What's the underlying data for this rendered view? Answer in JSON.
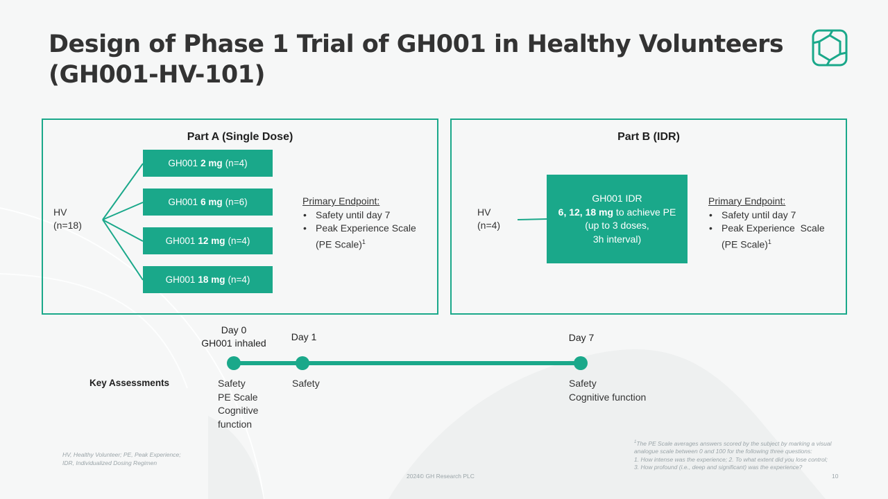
{
  "slide": {
    "title_line1": "Design of Phase 1 Trial of GH001 in Healthy Volunteers",
    "title_line2": "(GH001-HV-101)",
    "logo_icon": "hexagon-logo-icon",
    "accent_color": "#1aa88a"
  },
  "part_a": {
    "title": "Part A (Single Dose)",
    "hv_label": "HV",
    "hv_count": "(n=18)",
    "doses": [
      {
        "drug": "GH001",
        "dose": "2 mg",
        "n": "(n=4)"
      },
      {
        "drug": "GH001",
        "dose": "6 mg",
        "n": "(n=6)"
      },
      {
        "drug": "GH001",
        "dose": "12 mg",
        "n": "(n=4)"
      },
      {
        "drug": "GH001",
        "dose": "18 mg",
        "n": "(n=4)"
      }
    ],
    "endpoint_heading": "Primary Endpoint:",
    "endpoint_item1": "Safety until day 7",
    "endpoint_item2_line1": "Peak Experience Scale",
    "endpoint_item2_line2": "(PE Scale)",
    "endpoint_sup": "1"
  },
  "part_b": {
    "title": "Part B (IDR)",
    "hv_label": "HV",
    "hv_count": "(n=4)",
    "idr_line1": "GH001 IDR",
    "idr_doses_bold": "6, 12, 18 mg",
    "idr_line2_rest": " to achieve PE",
    "idr_line3": "(up to 3 doses,",
    "idr_line4": "3h interval)",
    "endpoint_heading": "Primary Endpoint:",
    "endpoint_item1": "Safety until day 7",
    "endpoint_item2_line1": "Peak Experience  Scale",
    "endpoint_item2_line2": "(PE Scale)",
    "endpoint_sup": "1"
  },
  "timeline": {
    "day0_line1": "Day 0",
    "day0_line2": "GH001 inhaled",
    "day1": "Day 1",
    "day7": "Day 7",
    "key_assessments": "Key Assessments",
    "day0_assess": [
      "Safety",
      "PE Scale",
      "Cognitive",
      "function"
    ],
    "day1_assess": [
      "Safety"
    ],
    "day7_assess": [
      "Safety",
      "Cognitive function"
    ]
  },
  "footer": {
    "abbrev_line1": "HV, Healthy Volunteer; PE, Peak Experience;",
    "abbrev_line2": "IDR, Individualized Dosing Regimen",
    "note_sup": "1",
    "note_line1": "The PE Scale averages answers scored by the subject by marking a visual",
    "note_line2": "analogue scale between 0 and 100 for the following three questions:",
    "note_line3": "1. How intense was the experience; 2. To what extent did you lose control;",
    "note_line4": "3. How profound (i.e., deep and significant) was the experience?",
    "copyright": "2024© GH Research PLC",
    "page_number": "10"
  }
}
